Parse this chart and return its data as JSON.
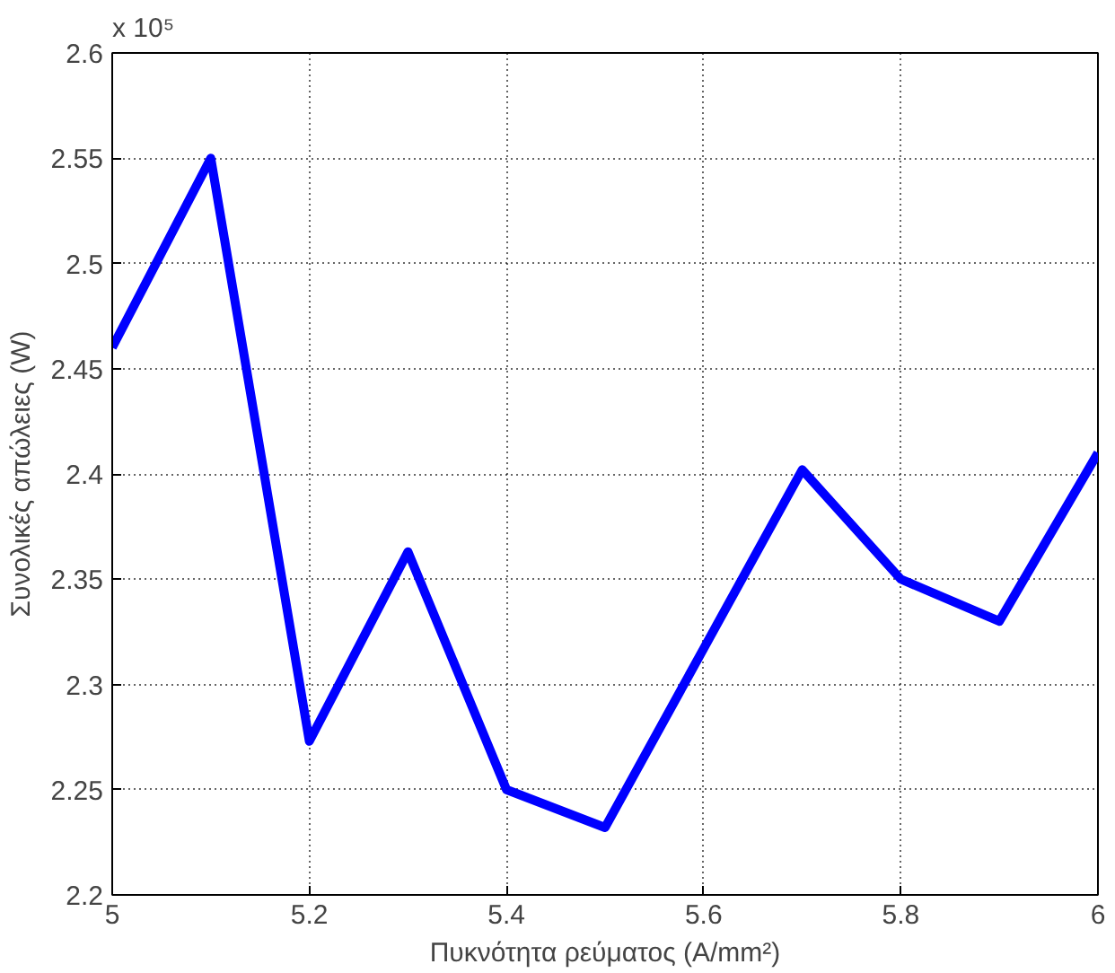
{
  "chart_data": {
    "type": "line",
    "xlabel": "Πυκνότητα ρεύματος (A/mm²)",
    "ylabel": "Συνολικές απώλειες (W)",
    "annotations": [
      "x 10⁵"
    ],
    "x": [
      5.0,
      5.1,
      5.2,
      5.3,
      5.4,
      5.5,
      5.6,
      5.7,
      5.8,
      5.9,
      6.0
    ],
    "series": [
      {
        "color": "#0000ff",
        "values": [
          2.46,
          2.55,
          2.273,
          2.363,
          2.25,
          2.232,
          2.317,
          2.402,
          2.35,
          2.33,
          2.41
        ]
      }
    ],
    "xlim": [
      5,
      6
    ],
    "xticks": [
      5,
      5.2,
      5.4,
      5.6,
      5.8,
      6
    ],
    "ylim": [
      2.2,
      2.6
    ],
    "yticks": [
      2.2,
      2.25,
      2.3,
      2.35,
      2.4,
      2.45,
      2.5,
      2.55,
      2.6
    ],
    "grid": true,
    "marker": "none",
    "line_style": "solid"
  }
}
